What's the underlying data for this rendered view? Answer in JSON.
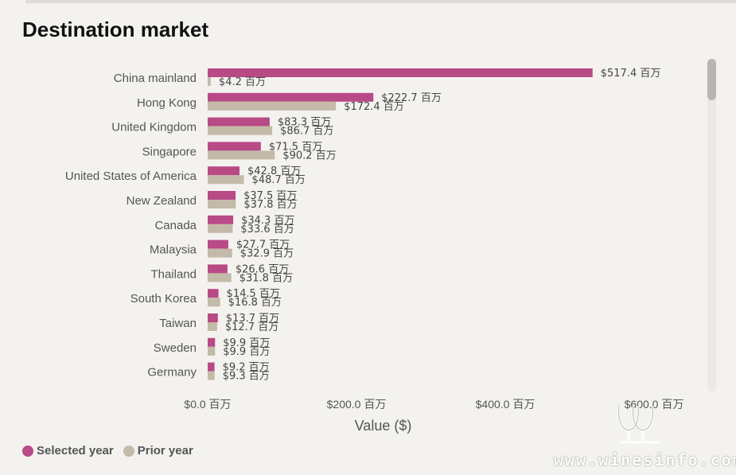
{
  "header": {
    "title": "Destination market"
  },
  "colors": {
    "selected": "#b84a86",
    "prior": "#c3baa9",
    "background": "#f4f2ef"
  },
  "legend": {
    "selected_label": "Selected year",
    "prior_label": "Prior year"
  },
  "watermark": {
    "text": "www.winesinfo.com"
  },
  "chart_data": {
    "type": "bar",
    "orientation": "horizontal",
    "title": "Destination market",
    "xlabel": "Value ($)",
    "ylabel": "",
    "xlim": [
      0,
      600
    ],
    "x_ticks": [
      "$0.0 百万",
      "$200.0 百万",
      "$400.0 百万",
      "$600.0 百万"
    ],
    "x_tick_values": [
      0,
      200,
      400,
      600
    ],
    "legend_position": "bottom-left",
    "categories": [
      "China mainland",
      "Hong Kong",
      "United Kingdom",
      "Singapore",
      "United States of America",
      "New Zealand",
      "Canada",
      "Malaysia",
      "Thailand",
      "South Korea",
      "Taiwan",
      "Sweden",
      "Germany"
    ],
    "series": [
      {
        "name": "Selected year",
        "values": [
          517.4,
          222.7,
          83.3,
          71.5,
          42.8,
          37.5,
          34.3,
          27.7,
          26.6,
          14.5,
          13.7,
          9.9,
          9.2
        ],
        "labels": [
          "$517.4 百万",
          "$222.7 百万",
          "$83.3 百万",
          "$71.5 百万",
          "$42.8 百万",
          "$37.5 百万",
          "$34.3 百万",
          "$27.7 百万",
          "$26.6 百万",
          "$14.5 百万",
          "$13.7 百万",
          "$9.9 百万",
          "$9.2 百万"
        ]
      },
      {
        "name": "Prior year",
        "values": [
          4.2,
          172.4,
          86.7,
          90.2,
          48.7,
          37.8,
          33.6,
          32.9,
          31.8,
          16.8,
          12.7,
          9.9,
          9.3
        ],
        "labels": [
          "$4.2 百万",
          "$172.4 百万",
          "$86.7 百万",
          "$90.2 百万",
          "$48.7 百万",
          "$37.8 百万",
          "$33.6 百万",
          "$32.9 百万",
          "$31.8 百万",
          "$16.8 百万",
          "$12.7 百万",
          "$9.9 百万",
          "$9.3 百万"
        ]
      }
    ]
  }
}
